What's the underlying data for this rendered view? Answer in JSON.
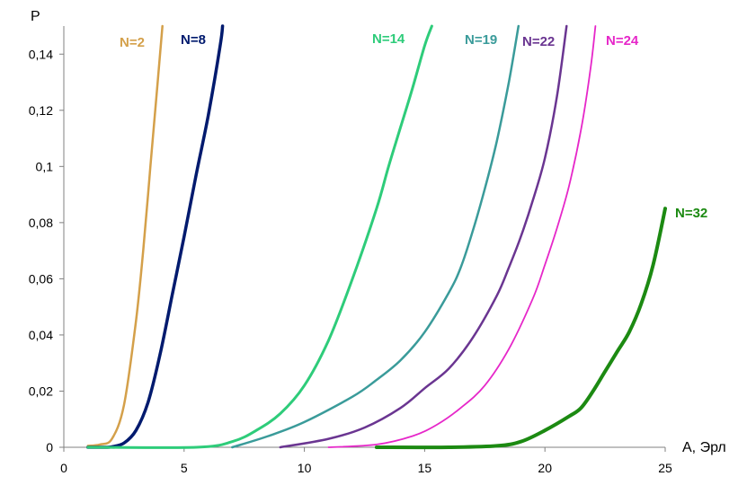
{
  "chart_data": {
    "type": "line",
    "title": "",
    "xlabel": "A, Эрл",
    "ylabel": "P",
    "xlim": [
      0,
      25
    ],
    "ylim": [
      0,
      0.15
    ],
    "grid": false,
    "legend": "inline labels",
    "x_ticks": [
      "0",
      "5",
      "10",
      "15",
      "20",
      "25"
    ],
    "y_ticks": [
      "0",
      "0,02",
      "0,04",
      "0,06",
      "0,08",
      "0,1",
      "0,12",
      "0,14"
    ],
    "series": [
      {
        "name": "N=2",
        "color": "#D4A04A",
        "x": [
          1,
          1.5,
          2,
          2.5,
          3,
          3.3,
          3.6,
          3.9,
          4.1
        ],
        "y": [
          0.0005,
          0.001,
          0.003,
          0.015,
          0.045,
          0.07,
          0.1,
          0.13,
          0.15
        ]
      },
      {
        "name": "N=8",
        "color": "#001A6E",
        "x": [
          1,
          1.7,
          2,
          2.5,
          3,
          3.5,
          4,
          4.5,
          5,
          5.5,
          6,
          6.5,
          6.6
        ],
        "y": [
          0,
          0,
          0.0002,
          0.0015,
          0.006,
          0.016,
          0.033,
          0.054,
          0.075,
          0.097,
          0.118,
          0.143,
          0.15
        ]
      },
      {
        "name": "N=14",
        "color": "#2ECC7A",
        "x": [
          1,
          5.5,
          7,
          8,
          9,
          10,
          11,
          12,
          13,
          13.5,
          14,
          14.5,
          15,
          15.3
        ],
        "y": [
          0,
          0,
          0.002,
          0.006,
          0.012,
          0.022,
          0.038,
          0.06,
          0.085,
          0.1,
          0.114,
          0.128,
          0.143,
          0.15
        ]
      },
      {
        "name": "N=19",
        "color": "#3A9B9A",
        "x": [
          7,
          8.5,
          10,
          12,
          13,
          14,
          15,
          16,
          16.5,
          17,
          17.5,
          18,
          18.5,
          18.9
        ],
        "y": [
          0,
          0.004,
          0.009,
          0.018,
          0.024,
          0.031,
          0.041,
          0.055,
          0.064,
          0.077,
          0.092,
          0.109,
          0.13,
          0.15
        ]
      },
      {
        "name": "N=22",
        "color": "#6A3591",
        "x": [
          9,
          11,
          12.5,
          14,
          15,
          16,
          17,
          18,
          18.5,
          19,
          19.5,
          20,
          20.5,
          20.9
        ],
        "y": [
          0,
          0.003,
          0.007,
          0.014,
          0.021,
          0.028,
          0.039,
          0.054,
          0.064,
          0.075,
          0.088,
          0.103,
          0.125,
          0.15
        ]
      },
      {
        "name": "N=24",
        "color": "#E627C9",
        "x": [
          11,
          13,
          14.5,
          15.5,
          16.5,
          17.5,
          18.5,
          19.5,
          20,
          20.5,
          21,
          21.5,
          21.9,
          22.1
        ],
        "y": [
          0,
          0.001,
          0.004,
          0.008,
          0.014,
          0.022,
          0.035,
          0.053,
          0.065,
          0.078,
          0.093,
          0.113,
          0.135,
          0.15
        ]
      },
      {
        "name": "N=32",
        "color": "#1C8A12",
        "x": [
          13,
          16,
          18,
          19,
          20,
          21,
          21.5,
          22,
          22.5,
          23,
          23.5,
          24,
          24.5,
          25
        ],
        "y": [
          0,
          0,
          0.0005,
          0.002,
          0.006,
          0.011,
          0.014,
          0.02,
          0.027,
          0.034,
          0.041,
          0.051,
          0.065,
          0.085
        ]
      }
    ]
  }
}
